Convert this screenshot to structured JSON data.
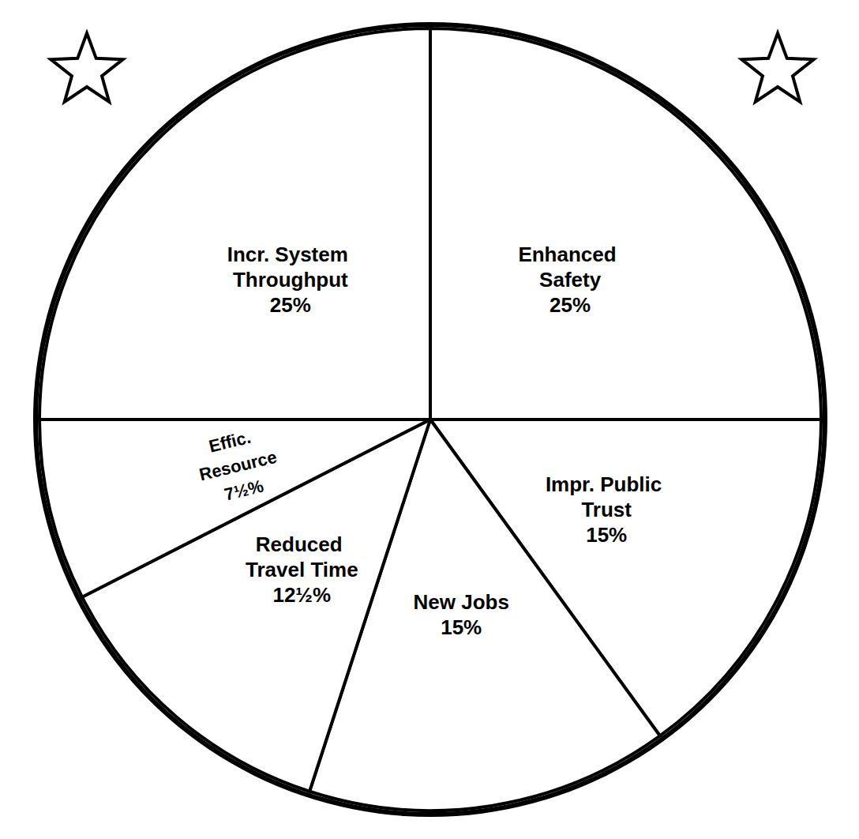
{
  "chart_data": {
    "type": "pie",
    "categories": [
      "Enhanced Safety",
      "Impr. Public Trust",
      "New Jobs",
      "Reduced Travel Time",
      "Effic. Resource",
      "Incr. System Throughput"
    ],
    "values": [
      25,
      15,
      15,
      12.5,
      7.5,
      25
    ],
    "value_labels": [
      "25%",
      "15%",
      "15%",
      "12½%",
      "7½%",
      "25%"
    ],
    "color": "#ffffff",
    "data_labels": true
  }
}
